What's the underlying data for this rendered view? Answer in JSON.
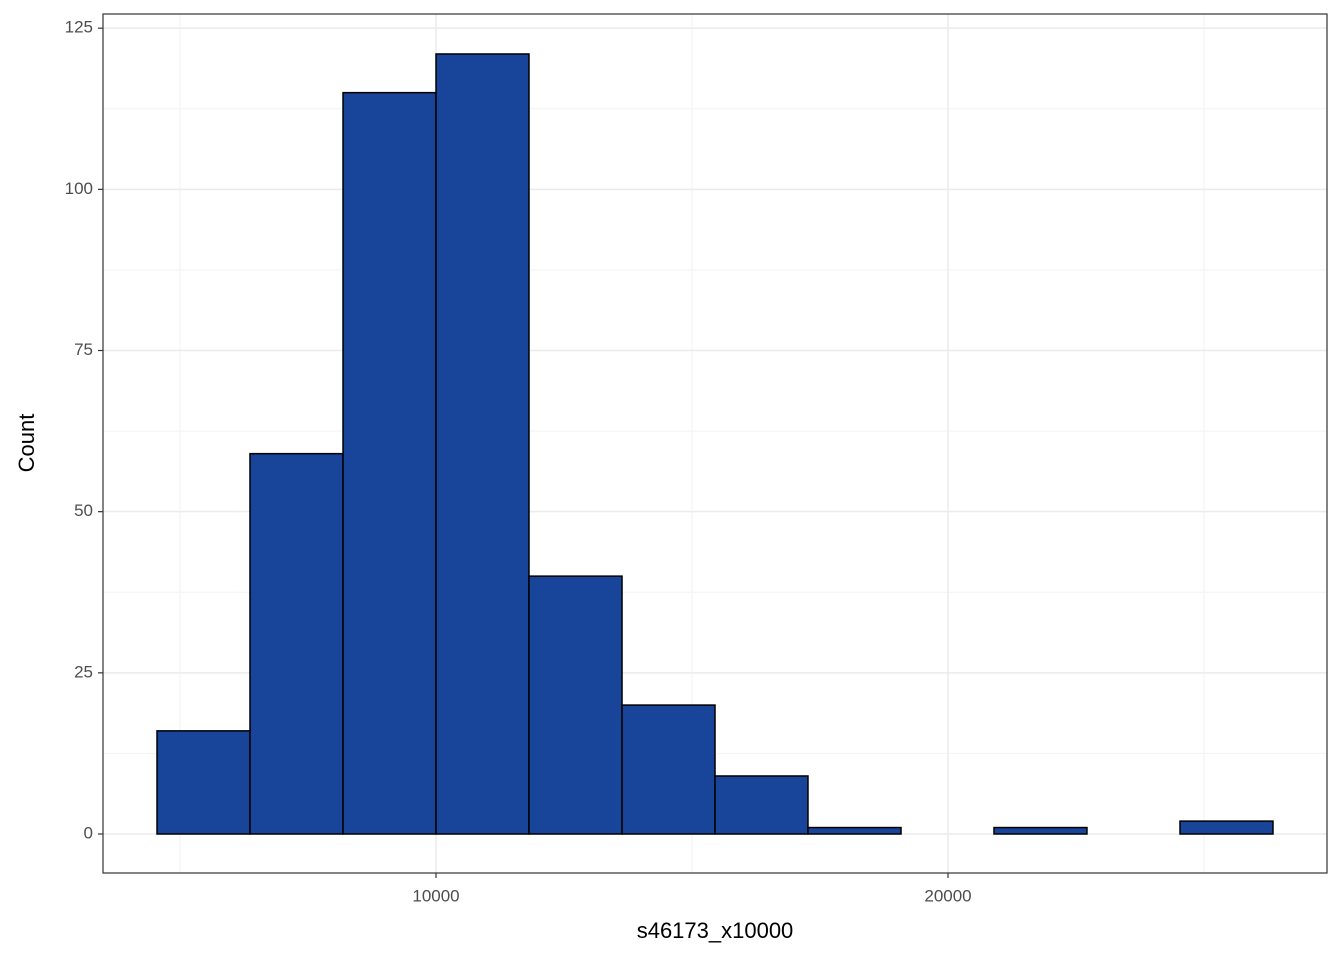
{
  "chart_data": {
    "type": "histogram",
    "xlabel": "s46173_x10000",
    "ylabel": "Count",
    "bins": [
      4551,
      6367,
      8184,
      10000,
      11816,
      13633,
      15449,
      17265,
      19082,
      20898,
      22714,
      24531,
      26347
    ],
    "counts": [
      16,
      59,
      115,
      121,
      40,
      20,
      9,
      1,
      0,
      1,
      0,
      2
    ],
    "color": "#18449a",
    "edgecolor": "#000000",
    "xlim": [
      3496,
      27402
    ],
    "ylim": [
      -6.05,
      127.2
    ],
    "xticks": [
      10000,
      20000
    ],
    "yticks": [
      0,
      25,
      50,
      75,
      100,
      125
    ],
    "grid": true
  }
}
